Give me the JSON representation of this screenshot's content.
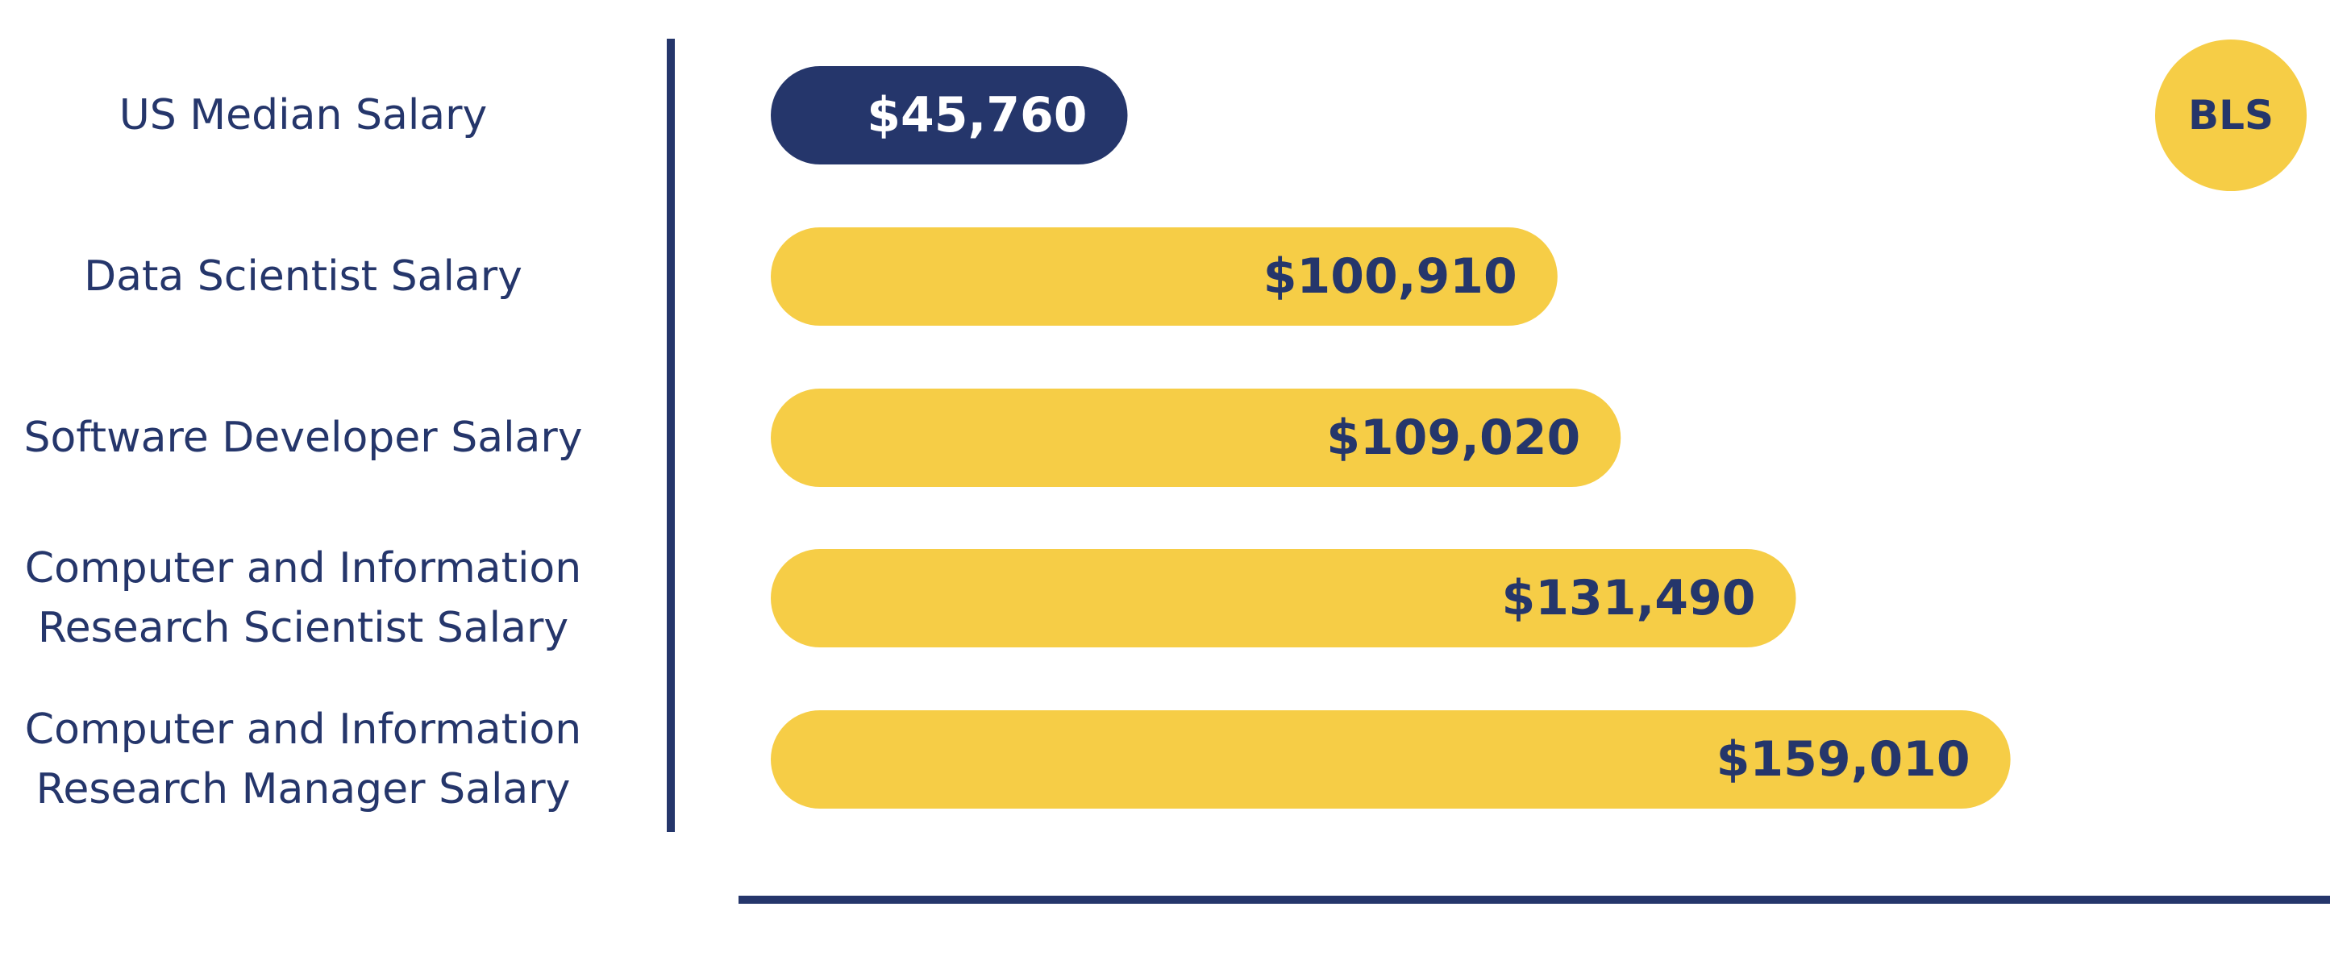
{
  "chart_data": {
    "type": "bar",
    "orientation": "horizontal",
    "categories": [
      [
        "US Median Salary"
      ],
      [
        "Data Scientist Salary"
      ],
      [
        "Software Developer Salary"
      ],
      [
        "Computer and Information",
        "Research Scientist Salary"
      ],
      [
        "Computer and Information",
        "Research Manager Salary"
      ]
    ],
    "values": [
      45760,
      100910,
      109020,
      131490,
      159010
    ],
    "value_labels": [
      "$45,760",
      "$100,910",
      "$109,020",
      "$131,490",
      "$159,010"
    ],
    "xlim": [
      0,
      200000
    ],
    "grid": false,
    "legend": "none",
    "highlight_index": 0,
    "source_badge": "BLS"
  },
  "colors": {
    "highlight_bar": "#25366b",
    "bar": "#f6cd46",
    "axis": "#25366b",
    "category_text": "#25366b",
    "highlight_value_text": "#ffffff",
    "value_text": "#25366b",
    "badge_fill": "#f6cd46",
    "badge_text": "#25366b"
  }
}
